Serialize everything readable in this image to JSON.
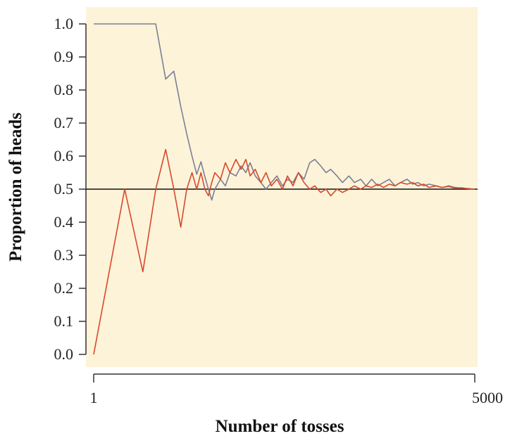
{
  "chart_data": {
    "type": "line",
    "title": "",
    "xlabel": "Number of tosses",
    "ylabel": "Proportion of heads",
    "xlim": [
      1,
      5000
    ],
    "ylim": [
      0.0,
      1.0
    ],
    "x_scale": "log",
    "x_ticks": [
      "1",
      "5000"
    ],
    "y_ticks": [
      "0.0",
      "0.1",
      "0.2",
      "0.3",
      "0.4",
      "0.5",
      "0.6",
      "0.7",
      "0.8",
      "0.9",
      "1.0"
    ],
    "reference_line": 0.5,
    "grid": false,
    "plot_background": "#fdf3d8",
    "series": [
      {
        "color": "#7b7f96",
        "points": [
          [
            1,
            1.0
          ],
          [
            2,
            1.0
          ],
          [
            3,
            1.0
          ],
          [
            4,
            1.0
          ],
          [
            5,
            0.833
          ],
          [
            6,
            0.857
          ],
          [
            7,
            0.75
          ],
          [
            8,
            0.667
          ],
          [
            9,
            0.6
          ],
          [
            10,
            0.545
          ],
          [
            11,
            0.583
          ],
          [
            12,
            0.538
          ],
          [
            13,
            0.5
          ],
          [
            14,
            0.467
          ],
          [
            15,
            0.5
          ],
          [
            17,
            0.53
          ],
          [
            19,
            0.51
          ],
          [
            21,
            0.55
          ],
          [
            24,
            0.54
          ],
          [
            27,
            0.57
          ],
          [
            30,
            0.55
          ],
          [
            33,
            0.58
          ],
          [
            37,
            0.54
          ],
          [
            42,
            0.52
          ],
          [
            47,
            0.5
          ],
          [
            53,
            0.52
          ],
          [
            60,
            0.54
          ],
          [
            68,
            0.51
          ],
          [
            76,
            0.53
          ],
          [
            86,
            0.52
          ],
          [
            97,
            0.55
          ],
          [
            110,
            0.53
          ],
          [
            125,
            0.58
          ],
          [
            140,
            0.59
          ],
          [
            160,
            0.57
          ],
          [
            180,
            0.55
          ],
          [
            200,
            0.56
          ],
          [
            230,
            0.54
          ],
          [
            260,
            0.52
          ],
          [
            300,
            0.54
          ],
          [
            340,
            0.52
          ],
          [
            390,
            0.53
          ],
          [
            440,
            0.51
          ],
          [
            500,
            0.53
          ],
          [
            570,
            0.51
          ],
          [
            650,
            0.52
          ],
          [
            740,
            0.53
          ],
          [
            840,
            0.51
          ],
          [
            950,
            0.52
          ],
          [
            1100,
            0.53
          ],
          [
            1250,
            0.515
          ],
          [
            1400,
            0.52
          ],
          [
            1600,
            0.51
          ],
          [
            1800,
            0.515
          ],
          [
            2100,
            0.51
          ],
          [
            2400,
            0.505
          ],
          [
            2800,
            0.51
          ],
          [
            3200,
            0.505
          ],
          [
            3700,
            0.503
          ],
          [
            4300,
            0.502
          ],
          [
            5000,
            0.5
          ]
        ]
      },
      {
        "color": "#d8482c",
        "points": [
          [
            1,
            0.0
          ],
          [
            2,
            0.5
          ],
          [
            3,
            0.25
          ],
          [
            4,
            0.5
          ],
          [
            5,
            0.62
          ],
          [
            6,
            0.5
          ],
          [
            7,
            0.385
          ],
          [
            8,
            0.5
          ],
          [
            9,
            0.55
          ],
          [
            10,
            0.5
          ],
          [
            11,
            0.55
          ],
          [
            12,
            0.5
          ],
          [
            13,
            0.48
          ],
          [
            14,
            0.52
          ],
          [
            15,
            0.55
          ],
          [
            17,
            0.53
          ],
          [
            19,
            0.58
          ],
          [
            21,
            0.55
          ],
          [
            24,
            0.59
          ],
          [
            27,
            0.56
          ],
          [
            30,
            0.59
          ],
          [
            33,
            0.54
          ],
          [
            37,
            0.56
          ],
          [
            42,
            0.52
          ],
          [
            47,
            0.55
          ],
          [
            53,
            0.51
          ],
          [
            60,
            0.53
          ],
          [
            68,
            0.5
          ],
          [
            76,
            0.54
          ],
          [
            86,
            0.51
          ],
          [
            97,
            0.55
          ],
          [
            110,
            0.52
          ],
          [
            125,
            0.5
          ],
          [
            140,
            0.51
          ],
          [
            160,
            0.49
          ],
          [
            180,
            0.5
          ],
          [
            200,
            0.48
          ],
          [
            230,
            0.5
          ],
          [
            260,
            0.49
          ],
          [
            300,
            0.5
          ],
          [
            340,
            0.51
          ],
          [
            390,
            0.5
          ],
          [
            440,
            0.51
          ],
          [
            500,
            0.505
          ],
          [
            570,
            0.515
          ],
          [
            650,
            0.505
          ],
          [
            740,
            0.515
          ],
          [
            840,
            0.51
          ],
          [
            950,
            0.52
          ],
          [
            1100,
            0.515
          ],
          [
            1250,
            0.52
          ],
          [
            1400,
            0.51
          ],
          [
            1600,
            0.515
          ],
          [
            1800,
            0.505
          ],
          [
            2100,
            0.51
          ],
          [
            2400,
            0.505
          ],
          [
            2800,
            0.508
          ],
          [
            3200,
            0.503
          ],
          [
            3700,
            0.504
          ],
          [
            4300,
            0.501
          ],
          [
            5000,
            0.5
          ]
        ]
      }
    ]
  }
}
